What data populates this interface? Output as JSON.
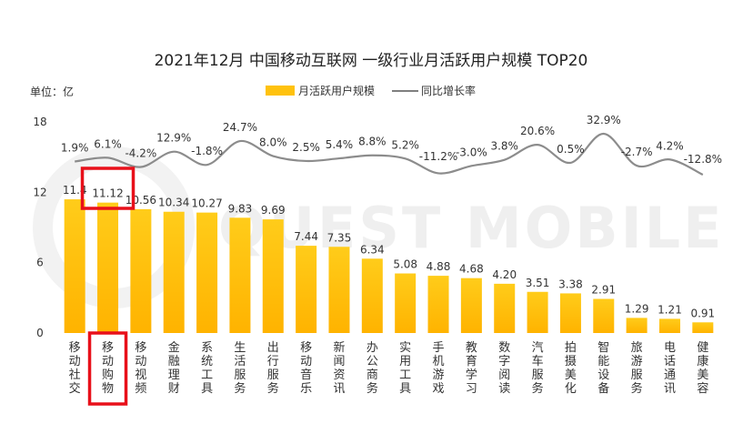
{
  "chart_data": {
    "type": "bar",
    "title": "2021年12月 中国移动互联网 一级行业月活跃用户规模 TOP20",
    "unit_label": "单位：亿",
    "watermark": "QUEST MOBILE",
    "legend": [
      {
        "name": "月活跃用户规模",
        "kind": "bar",
        "color": "#FFC20E"
      },
      {
        "name": "同比增长率",
        "kind": "line",
        "color": "#7F7F7F"
      }
    ],
    "legend_position": "top-center",
    "y_ticks": [
      0,
      6,
      12,
      18
    ],
    "ylim": [
      0,
      18
    ],
    "categories": [
      "移动社交",
      "移动购物",
      "移动视频",
      "金融理财",
      "系统工具",
      "生活服务",
      "出行服务",
      "移动音乐",
      "新闻资讯",
      "办公商务",
      "实用工具",
      "手机游戏",
      "教育学习",
      "数字阅读",
      "汽车服务",
      "拍摄美化",
      "智能设备",
      "旅游服务",
      "电话通讯",
      "健康美容"
    ],
    "series": [
      {
        "name": "月活跃用户规模",
        "type": "bar",
        "values": [
          11.4,
          11.12,
          10.56,
          10.34,
          10.27,
          9.83,
          9.69,
          7.44,
          7.35,
          6.34,
          5.08,
          4.88,
          4.68,
          4.2,
          3.51,
          3.38,
          2.91,
          1.29,
          1.21,
          0.91
        ],
        "labels": [
          "11.4",
          "11.12",
          "10.56",
          "10.34",
          "10.27",
          "9.83",
          "9.69",
          "7.44",
          "7.35",
          "6.34",
          "5.08",
          "4.88",
          "4.68",
          "4.20",
          "3.51",
          "3.38",
          "2.91",
          "1.29",
          "1.21",
          "0.91"
        ]
      },
      {
        "name": "同比增长率",
        "type": "line",
        "unit": "%",
        "values": [
          1.9,
          6.1,
          -4.2,
          12.9,
          -1.8,
          24.7,
          8.0,
          2.5,
          5.4,
          8.8,
          5.2,
          -11.2,
          -3.0,
          3.8,
          20.6,
          0.5,
          32.9,
          -2.7,
          4.2,
          -12.8
        ],
        "labels": [
          "1.9%",
          "6.1%",
          "-4.2%",
          "12.9%",
          "-1.8%",
          "24.7%",
          "8.0%",
          "2.5%",
          "5.4%",
          "8.8%",
          "5.2%",
          "-11.2%",
          "-3.0%",
          "3.8%",
          "20.6%",
          "0.5%",
          "32.9%",
          "-2.7%",
          "4.2%",
          "-12.8%"
        ]
      }
    ],
    "highlighted_category": "移动购物",
    "highlight_color": "#E8101A"
  }
}
